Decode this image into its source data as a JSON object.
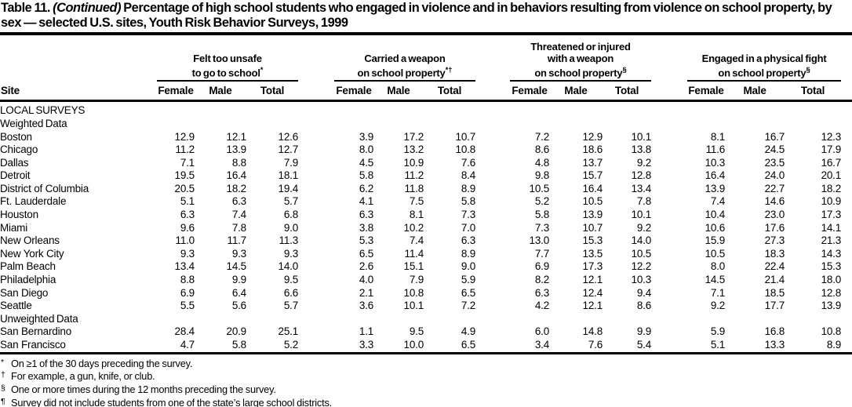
{
  "title": {
    "label": "Table 11.",
    "continued": "(Continued)",
    "rest": "Percentage of high school students who engaged in violence and in behaviors resulting from violence on school property, by sex — selected U.S. sites, Youth Risk Behavior Surveys, 1999"
  },
  "table": {
    "site_header": "Site",
    "sub_headers": [
      "Female",
      "Male",
      "Total"
    ],
    "groups": [
      {
        "lines": [
          "Felt too unsafe",
          "to go to school"
        ],
        "marker": "*"
      },
      {
        "lines": [
          "Carried a weapon",
          "on school property"
        ],
        "marker": "*†"
      },
      {
        "lines": [
          "Threatened or injured",
          "with a weapon",
          "on school property"
        ],
        "marker": "§"
      },
      {
        "lines": [
          "Engaged in a physical fight",
          "on school property"
        ],
        "marker": "§"
      }
    ],
    "sections": [
      {
        "heading": "LOCAL SURVEYS",
        "style": "section",
        "rows": []
      },
      {
        "heading": "Weighted Data",
        "style": "subsection",
        "rows": [
          {
            "site": "Boston",
            "values": [
              "12.9",
              "12.1",
              "12.6",
              "3.9",
              "17.2",
              "10.7",
              "7.2",
              "12.9",
              "10.1",
              "8.1",
              "16.7",
              "12.3"
            ]
          },
          {
            "site": "Chicago",
            "values": [
              "11.2",
              "13.9",
              "12.7",
              "8.0",
              "13.2",
              "10.8",
              "8.6",
              "18.6",
              "13.8",
              "11.6",
              "24.5",
              "17.9"
            ]
          },
          {
            "site": "Dallas",
            "values": [
              "7.1",
              "8.8",
              "7.9",
              "4.5",
              "10.9",
              "7.6",
              "4.8",
              "13.7",
              "9.2",
              "10.3",
              "23.5",
              "16.7"
            ]
          },
          {
            "site": "Detroit",
            "values": [
              "19.5",
              "16.4",
              "18.1",
              "5.8",
              "11.2",
              "8.4",
              "9.8",
              "15.7",
              "12.8",
              "16.4",
              "24.0",
              "20.1"
            ]
          },
          {
            "site": "District of Columbia",
            "values": [
              "20.5",
              "18.2",
              "19.4",
              "6.2",
              "11.8",
              "8.9",
              "10.5",
              "16.4",
              "13.4",
              "13.9",
              "22.7",
              "18.2"
            ]
          },
          {
            "site": "Ft. Lauderdale",
            "values": [
              "5.1",
              "6.3",
              "5.7",
              "4.1",
              "7.5",
              "5.8",
              "5.2",
              "10.5",
              "7.8",
              "7.4",
              "14.6",
              "10.9"
            ]
          },
          {
            "site": "Houston",
            "values": [
              "6.3",
              "7.4",
              "6.8",
              "6.3",
              "8.1",
              "7.3",
              "5.8",
              "13.9",
              "10.1",
              "10.4",
              "23.0",
              "17.3"
            ]
          },
          {
            "site": "Miami",
            "values": [
              "9.6",
              "7.8",
              "9.0",
              "3.8",
              "10.2",
              "7.0",
              "7.3",
              "10.7",
              "9.2",
              "10.6",
              "17.6",
              "14.1"
            ]
          },
          {
            "site": "New Orleans",
            "values": [
              "11.0",
              "11.7",
              "11.3",
              "5.3",
              "7.4",
              "6.3",
              "13.0",
              "15.3",
              "14.0",
              "15.9",
              "27.3",
              "21.3"
            ]
          },
          {
            "site": "New York City",
            "values": [
              "9.3",
              "9.3",
              "9.3",
              "6.5",
              "11.4",
              "8.9",
              "7.7",
              "13.5",
              "10.5",
              "10.5",
              "18.3",
              "14.3"
            ]
          },
          {
            "site": "Palm Beach",
            "values": [
              "13.4",
              "14.5",
              "14.0",
              "2.6",
              "15.1",
              "9.0",
              "6.9",
              "17.3",
              "12.2",
              "8.0",
              "22.4",
              "15.3"
            ]
          },
          {
            "site": "Philadelphia",
            "values": [
              "8.8",
              "9.9",
              "9.5",
              "4.0",
              "7.9",
              "5.9",
              "8.2",
              "12.1",
              "10.3",
              "14.5",
              "21.4",
              "18.0"
            ]
          },
          {
            "site": "San Diego",
            "values": [
              "6.9",
              "6.4",
              "6.6",
              "2.1",
              "10.8",
              "6.5",
              "6.3",
              "12.4",
              "9.4",
              "7.1",
              "18.5",
              "12.8"
            ]
          },
          {
            "site": "Seattle",
            "values": [
              "5.5",
              "5.6",
              "5.7",
              "3.6",
              "10.1",
              "7.2",
              "4.2",
              "12.1",
              "8.6",
              "9.2",
              "17.7",
              "13.9"
            ]
          }
        ]
      },
      {
        "heading": "Unweighted Data",
        "style": "subsection",
        "spacer_above": true,
        "rows": [
          {
            "site": "San Bernardino",
            "values": [
              "28.4",
              "20.9",
              "25.1",
              "1.1",
              "9.5",
              "4.9",
              "6.0",
              "14.8",
              "9.9",
              "5.9",
              "16.8",
              "10.8"
            ]
          },
          {
            "site": "San Francisco",
            "values": [
              "4.7",
              "5.8",
              "5.2",
              "3.3",
              "10.0",
              "6.5",
              "3.4",
              "7.6",
              "5.4",
              "5.1",
              "13.3",
              "8.9"
            ]
          }
        ]
      }
    ]
  },
  "footnotes": [
    {
      "marker": "*",
      "text": "On ≥1 of the 30 days preceding the survey."
    },
    {
      "marker": "†",
      "text": "For example, a gun, knife, or club."
    },
    {
      "marker": "§",
      "text": "One or more times during the 12 months preceding the survey."
    },
    {
      "marker": "¶",
      "text": "Survey did not include students from one of the state’s large school districts."
    }
  ]
}
